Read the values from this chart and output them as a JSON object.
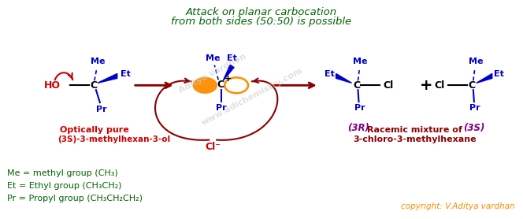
{
  "title_line1": "Attack on planar carbocation",
  "title_line2": "from both sides (50:50) is possible",
  "title_color": "#006400",
  "bg_color": "#ffffff",
  "blue_color": "#0000cd",
  "red_color": "#cc0000",
  "dark_red_color": "#8b0000",
  "green_color": "#006400",
  "orange_color": "#ff8c00",
  "copyright_text": "copyright: V.Aditya vardhan",
  "copyright_color": "#ff8c00",
  "watermark": "www.adichemistry.com",
  "legend_me": "Me = methyl group (CH₃)",
  "legend_et": "Et = Ethyl group (CH₃CH₂)",
  "legend_pr": "Pr = Propyl group (CH₃CH₂CH₂)",
  "label_3R": "(3R)",
  "label_3S": "(3S)",
  "label_optically": "Optically pure",
  "label_3S_hexanol": "(3S)-3-methylhexan-3-ol",
  "label_racemic1": "Racemic mixture of",
  "label_racemic2": "3-chloro-3-methylhexane"
}
